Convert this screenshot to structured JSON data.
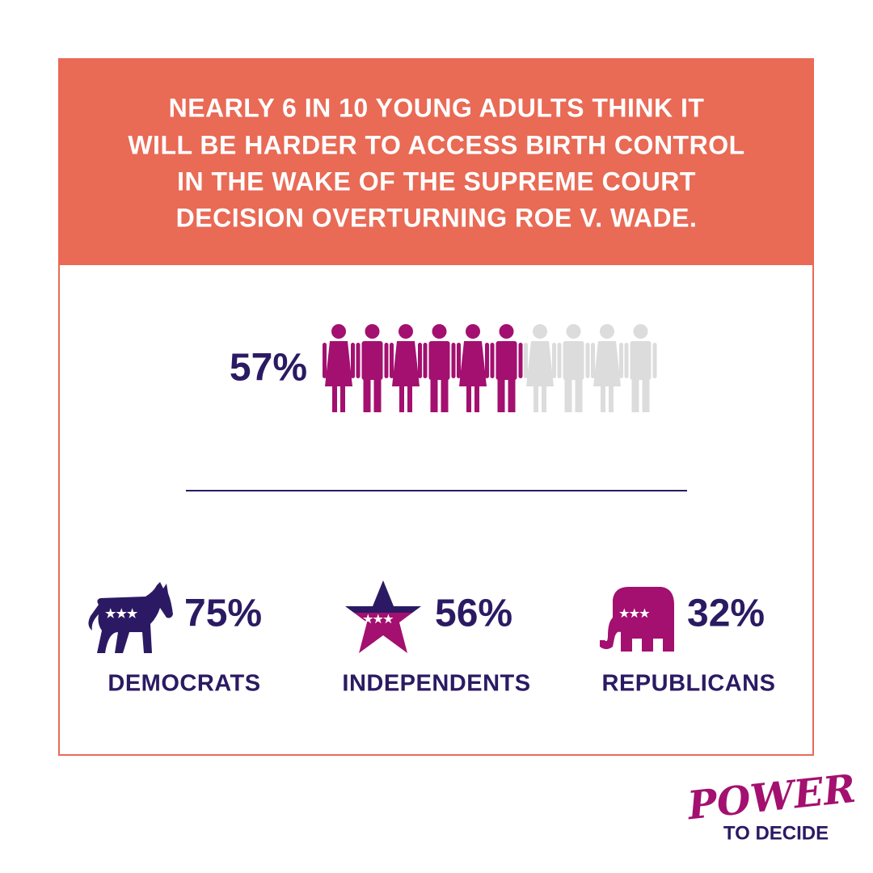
{
  "header": {
    "lines": [
      "NEARLY 6 IN 10 YOUNG ADULTS THINK IT",
      "WILL BE HARDER TO ACCESS BIRTH CONTROL",
      "IN THE WAKE OF THE SUPREME COURT",
      "DECISION OVERTURNING ROE V. WADE."
    ]
  },
  "overall": {
    "value": "57%"
  },
  "groups": [
    {
      "value": "75%",
      "label": "DEMOCRATS"
    },
    {
      "value": "56%",
      "label": "INDEPENDENTS"
    },
    {
      "value": "32%",
      "label": "REPUBLICANS"
    }
  ],
  "logo": {
    "top": "POWER",
    "bottom": "TO DECIDE"
  }
}
